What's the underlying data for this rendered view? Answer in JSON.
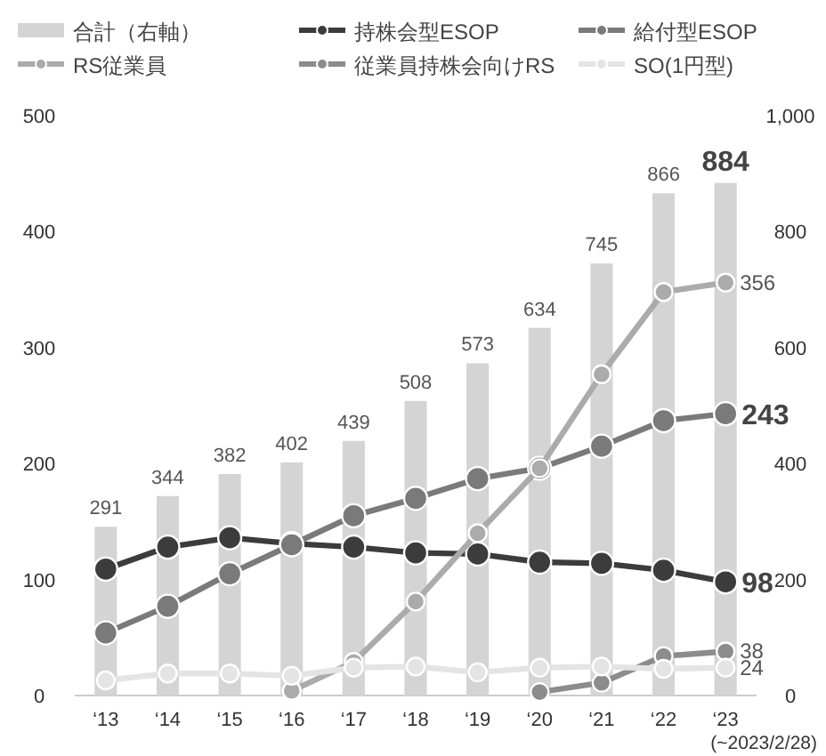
{
  "chart_data": {
    "type": "bar",
    "categories": [
      "‘13",
      "‘14",
      "‘15",
      "‘16",
      "‘17",
      "‘18",
      "‘19",
      "‘20",
      "‘21",
      "‘22",
      "‘23"
    ],
    "series": [
      {
        "name": "合計（右軸）",
        "axis": "y2",
        "color": "#d4d4d4",
        "values": [
          291,
          344,
          382,
          402,
          439,
          508,
          573,
          634,
          745,
          866,
          884
        ],
        "value_labels": [
          "291",
          "344",
          "382",
          "402",
          "439",
          "508",
          "573",
          "634",
          "745",
          "866",
          "**884**"
        ]
      },
      {
        "name": "持株会型ESOP",
        "type": "line",
        "color": "#3c3c3c",
        "values": [
          109,
          128,
          136,
          131,
          128,
          123,
          122,
          115,
          114,
          108,
          98
        ],
        "value_labels": [
          null,
          null,
          null,
          null,
          null,
          null,
          null,
          null,
          null,
          null,
          "**98**"
        ]
      },
      {
        "name": "給付型ESOP",
        "type": "line",
        "color": "#7a7a7a",
        "values": [
          54,
          77,
          105,
          130,
          155,
          170,
          187,
          196,
          215,
          237,
          243
        ],
        "value_labels": [
          null,
          null,
          null,
          null,
          null,
          null,
          null,
          null,
          null,
          null,
          "**243**"
        ]
      },
      {
        "name": "RS従業員",
        "type": "line",
        "color": "#ababab",
        "values": [
          null,
          null,
          null,
          4,
          29,
          81,
          140,
          196,
          277,
          348,
          356
        ],
        "value_labels": [
          null,
          null,
          null,
          null,
          null,
          null,
          null,
          null,
          null,
          null,
          "356"
        ]
      },
      {
        "name": "従業員持株会向けRS",
        "type": "line",
        "color": "#8c8c8c",
        "values": [
          null,
          null,
          null,
          null,
          null,
          null,
          null,
          3,
          11,
          34,
          38
        ],
        "value_labels": [
          null,
          null,
          null,
          null,
          null,
          null,
          null,
          null,
          null,
          null,
          "38"
        ]
      },
      {
        "name": "SO(1円型)",
        "type": "line",
        "color": "#e4e4e4",
        "values": [
          13,
          19,
          19,
          17,
          24,
          25,
          20,
          24,
          25,
          23,
          24
        ],
        "value_labels": [
          null,
          null,
          null,
          null,
          null,
          null,
          null,
          null,
          null,
          null,
          "24"
        ]
      }
    ],
    "ylim": [
      0,
      500
    ],
    "yticks": [
      0,
      100,
      200,
      300,
      400,
      500
    ],
    "y2lim": [
      0,
      1000
    ],
    "y2ticks": [
      0,
      200,
      400,
      600,
      800,
      {
        "value": 1000,
        "label": "1,000"
      }
    ],
    "marker": "circle",
    "legend": "top",
    "grid": false,
    "annotations": [
      "(~2023/2/28)"
    ]
  }
}
